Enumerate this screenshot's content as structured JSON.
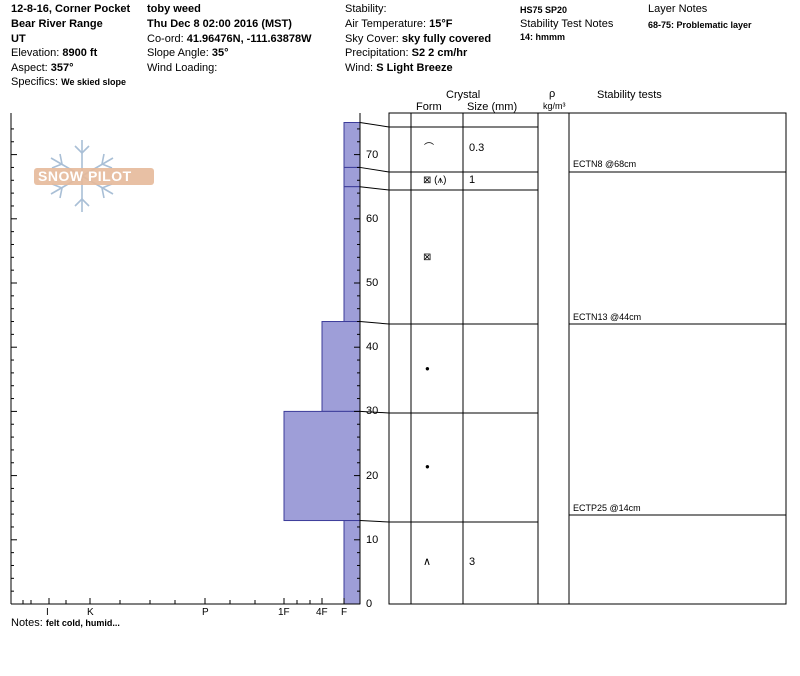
{
  "header": {
    "title": "12-8-16, Corner Pocket",
    "observer": "toby weed",
    "range": "Bear River Range",
    "date": "Thu Dec 8 02:00 2016 (MST)",
    "state": "UT",
    "coord_label": "Co-ord:",
    "coord_value": "41.96476N, -111.63878W",
    "elevation_label": "Elevation:",
    "elevation_value": "8900 ft",
    "slope_label": "Slope Angle:",
    "slope_value": "35°",
    "aspect_label": "Aspect:",
    "aspect_value": "357°",
    "wind_loading_label": "Wind Loading:",
    "specifics_label": "Specifics:",
    "specifics_value": "We skied slope",
    "stability_label": "Stability:",
    "air_temp_label": "Air Temperature:",
    "air_temp_value": "15°F",
    "sky_label": "Sky Cover:",
    "sky_value": "sky fully covered",
    "precip_label": "Precipitation:",
    "precip_value": "S2 2 cm/hr",
    "wind_label": "Wind:",
    "wind_value": "S Light Breeze",
    "hs_sp": "HS75 SP20",
    "stability_notes_label": "Stability Test Notes",
    "stability_notes_value": "14: hmmm",
    "layer_notes_label": "Layer Notes",
    "layer_notes_value": "68-75: Problematic layer"
  },
  "logo_text": "SNOW PILOT",
  "columns": {
    "crystal": "Crystal",
    "form": "Form",
    "size": "Size (mm)",
    "rho": "ρ",
    "rho_unit": "kg/m³",
    "stability_tests": "Stability tests"
  },
  "hardness_axis": [
    "I",
    "K",
    "P",
    "1F",
    "4F",
    "F"
  ],
  "depth_axis": [
    0,
    10,
    20,
    30,
    40,
    50,
    60,
    70
  ],
  "layers": [
    {
      "top": 75,
      "bottom": 68,
      "hardness": "F",
      "form": "precip-particle",
      "size": "0.3"
    },
    {
      "top": 68,
      "bottom": 65,
      "hardness": "F",
      "form": "faceted-rounded (surface hoar)",
      "size": "1"
    },
    {
      "top": 65,
      "bottom": 44,
      "hardness": "F",
      "form": "faceted-rounded",
      "size": ""
    },
    {
      "top": 44,
      "bottom": 30,
      "hardness": "4F",
      "form": "melt-freeze",
      "size": ""
    },
    {
      "top": 30,
      "bottom": 13,
      "hardness": "1F",
      "form": "melt-freeze",
      "size": ""
    },
    {
      "top": 13,
      "bottom": 0,
      "hardness": "F",
      "form": "depth-hoar",
      "size": "3"
    }
  ],
  "form_symbols": {
    "s1": "⌒",
    "s2": "⊠ (⩚)",
    "s3": "⊠",
    "s4": "●",
    "s5": "●",
    "s6": "∧"
  },
  "stability_tests": [
    "ECTN8 @68cm",
    "ECTN13 @44cm",
    "ECTP25 @14cm"
  ],
  "notes_label": "Notes:",
  "notes_value": "felt cold, humid..."
}
